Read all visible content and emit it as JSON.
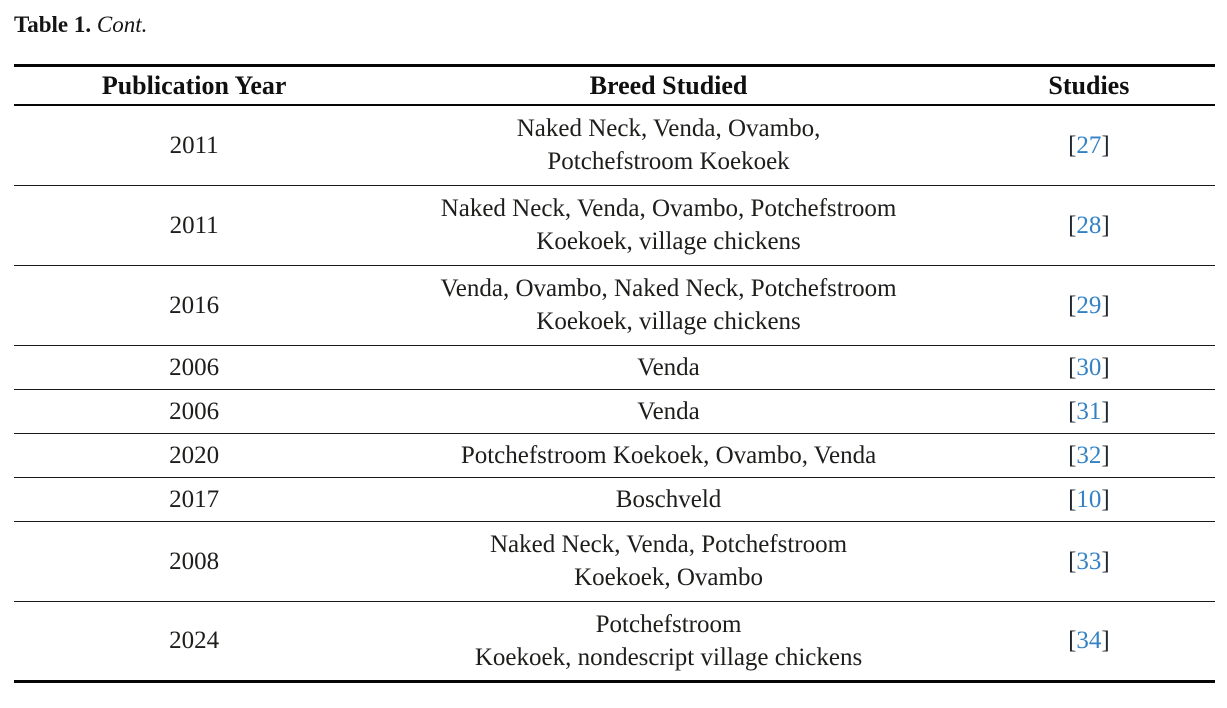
{
  "caption": {
    "label": "Table 1.",
    "cont": "Cont."
  },
  "citation_brackets": {
    "open": "[",
    "close": "]"
  },
  "colors": {
    "citation_link_blue": "#3482c4",
    "text": "#1d1d1b",
    "rule": "#060606"
  },
  "table": {
    "headers": [
      "Publication Year",
      "Breed Studied",
      "Studies"
    ],
    "rows": [
      {
        "year": "2011",
        "breed_lines": [
          "Naked Neck, Venda, Ovambo,",
          "Potchefstroom Koekoek"
        ],
        "citation": "27"
      },
      {
        "year": "2011",
        "breed_lines": [
          "Naked Neck, Venda, Ovambo, Potchefstroom",
          "Koekoek, village chickens"
        ],
        "citation": "28"
      },
      {
        "year": "2016",
        "breed_lines": [
          "Venda, Ovambo, Naked Neck, Potchefstroom",
          "Koekoek, village chickens"
        ],
        "citation": "29"
      },
      {
        "year": "2006",
        "breed_lines": [
          "Venda"
        ],
        "citation": "30"
      },
      {
        "year": "2006",
        "breed_lines": [
          "Venda"
        ],
        "citation": "31"
      },
      {
        "year": "2020",
        "breed_lines": [
          "Potchefstroom Koekoek, Ovambo, Venda"
        ],
        "citation": "32"
      },
      {
        "year": "2017",
        "breed_lines": [
          "Boschveld"
        ],
        "citation": "10"
      },
      {
        "year": "2008",
        "breed_lines": [
          "Naked Neck, Venda, Potchefstroom",
          "Koekoek, Ovambo"
        ],
        "citation": "33"
      },
      {
        "year": "2024",
        "breed_lines": [
          "Potchefstroom",
          "Koekoek, nondescript village chickens"
        ],
        "citation": "34"
      }
    ]
  }
}
